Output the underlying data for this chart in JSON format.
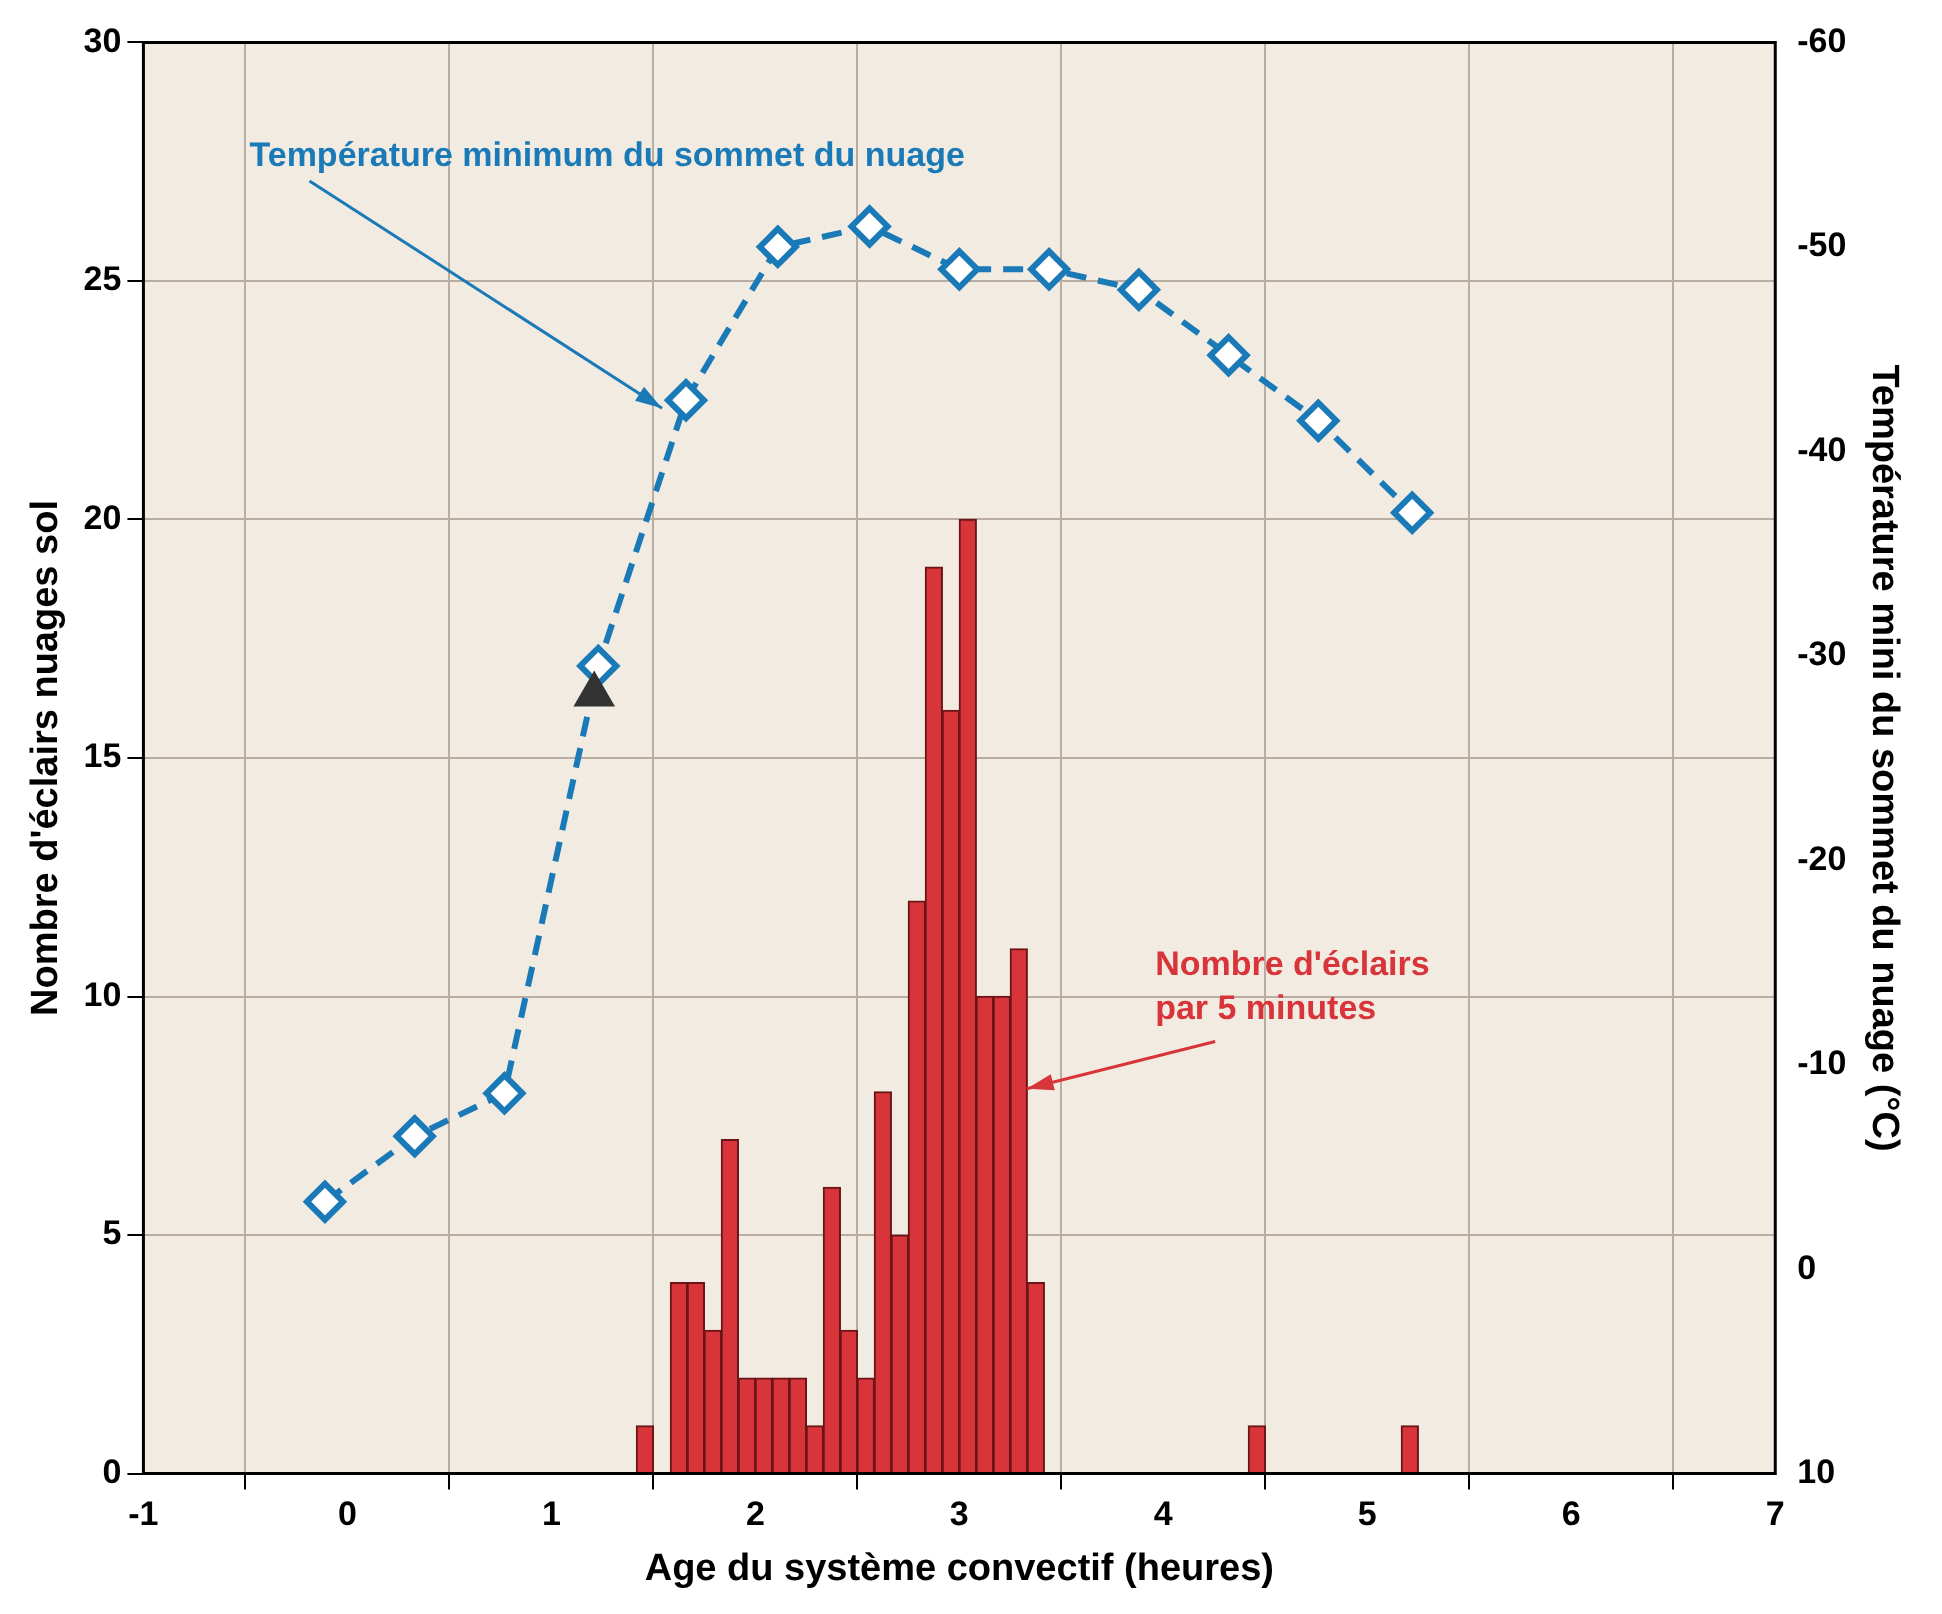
{
  "chart_data": {
    "type": "histogram",
    "xlabel": "Age du système convectif (heures)",
    "ylabel": "Nombre d'éclairs nuages sol",
    "y2label": "Température mini du sommet du nuage (°C)",
    "xlim": [
      -1,
      7
    ],
    "xticks": [
      -1,
      0,
      1,
      2,
      3,
      4,
      5,
      6,
      7
    ],
    "ylim": [
      0,
      30
    ],
    "yticks": [
      0,
      5,
      10,
      15,
      20,
      25,
      30
    ],
    "y2lim": [
      10,
      -60
    ],
    "y2ticks": [
      10,
      0,
      -10,
      -20,
      -30,
      -40,
      -50,
      -60
    ],
    "grid": true,
    "legend": false,
    "series": [
      {
        "name": "Nombre d'éclairs par 5 minutes",
        "color": "#d8353a",
        "bins": [
          1.417,
          1.5,
          1.583,
          1.667,
          1.75,
          1.833,
          1.917,
          2,
          2.083,
          2.167,
          2.25,
          2.333,
          2.417,
          2.5,
          2.583,
          2.667,
          2.75,
          2.833,
          2.917,
          3,
          3.083,
          3.167,
          3.25,
          3.333,
          3.417,
          3.5,
          3.583,
          3.667,
          3.75,
          3.833,
          3.917,
          4,
          4.083,
          4.167,
          4.25,
          4.333,
          4.417,
          4.5,
          4.583,
          4.667,
          4.75,
          4.833,
          4.917,
          5,
          5.083,
          5.167,
          5.25
        ],
        "values": [
          1,
          0,
          4,
          4,
          3,
          7,
          2,
          2,
          2,
          2,
          1,
          6,
          3,
          2,
          8,
          5,
          12,
          19,
          16,
          20,
          10,
          10,
          11,
          4,
          0,
          0,
          0,
          0,
          0,
          0,
          0,
          0,
          0,
          0,
          0,
          0,
          1,
          0,
          0,
          0,
          0,
          0,
          0,
          0,
          0,
          1
        ]
      },
      {
        "type": "line",
        "name": "Température minimum du sommet du nuage",
        "color": "#1a7ab8",
        "axis": "y2",
        "marker": "diamond",
        "line_style": "dashed",
        "x": [
          -0.11,
          0.33,
          0.77,
          1.23,
          1.66,
          2.11,
          2.56,
          3.0,
          3.44,
          3.88,
          4.32,
          4.76,
          5.22
        ],
        "values": [
          -3.3,
          -6.5,
          -8.6,
          -29.5,
          -42.5,
          -50,
          -51,
          -48.9,
          -48.9,
          -47.9,
          -44.7,
          -41.5,
          -37
        ]
      },
      {
        "type": "scatter",
        "color": "#333333",
        "axis": "y2",
        "marker": "triangle",
        "x": [
          1.21
        ],
        "values": [
          -28.1
        ]
      }
    ]
  }
}
